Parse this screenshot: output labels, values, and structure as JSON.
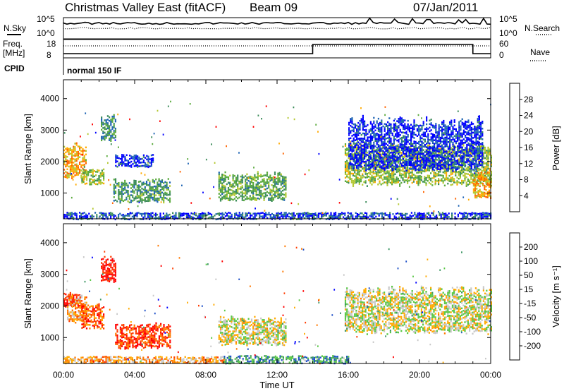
{
  "header": {
    "title": "Christmas Valley East (fitACF)",
    "beam": "Beam 09",
    "date": "07/Jan/2011"
  },
  "strip_labels": {
    "nsky": "N.Sky",
    "nsearch": "N.Search",
    "freq": "Freq.",
    "freq_unit": "[MHz]",
    "nave": "Nave",
    "cpid": "CPID",
    "cpid_value": "normal 150 IF"
  },
  "strip_ticks": {
    "noise_left_top": "10^5",
    "noise_left_bottom": "10^0",
    "noise_right_top": "10^5",
    "noise_right_bottom": "10^0",
    "freq_top": "18",
    "freq_bottom": "8",
    "nave_top": "60",
    "nave_bottom": "0"
  },
  "colors": {
    "power_scale": [
      "#0000ff",
      "#1e64b4",
      "#3c8c5a",
      "#5aaa3c",
      "#b4c832",
      "#ffaa00",
      "#ff6400",
      "#ff0000"
    ],
    "velocity_scale": [
      "#0000ff",
      "#1e50c8",
      "#3c9664",
      "#5ac846",
      "#c8c8c8",
      "#ffaa00",
      "#ff7800",
      "#ff3c00",
      "#ff0000"
    ]
  },
  "chart_data": [
    {
      "type": "heatmap",
      "name": "power",
      "ylabel": "Slant Range [km]",
      "yticks": [
        "4000",
        "3000",
        "2000",
        "1000"
      ],
      "ylim": [
        180,
        4600
      ],
      "xlim": [
        0,
        24
      ],
      "colorbar_label": "Power [dB]",
      "colorbar_ticks": [
        "28",
        "24",
        "20",
        "16",
        "12",
        "8",
        "4"
      ],
      "blobs": [
        {
          "t0": 0.0,
          "t1": 1.3,
          "r0": 1500,
          "r1": 2500,
          "level": 0.7
        },
        {
          "t0": 1.0,
          "t1": 2.3,
          "r0": 1300,
          "r1": 1750,
          "level": 0.5
        },
        {
          "t0": 2.1,
          "t1": 2.9,
          "r0": 2700,
          "r1": 3450,
          "level": 0.3
        },
        {
          "t0": 2.8,
          "t1": 6.0,
          "r0": 750,
          "r1": 1400,
          "level": 0.35
        },
        {
          "t0": 2.9,
          "t1": 5.0,
          "r0": 1850,
          "r1": 2200,
          "level": 0.1
        },
        {
          "t0": 8.7,
          "t1": 12.5,
          "r0": 800,
          "r1": 1600,
          "level": 0.4
        },
        {
          "t0": 15.8,
          "t1": 24.0,
          "r0": 1300,
          "r1": 2500,
          "level": 0.5
        },
        {
          "t0": 23.0,
          "t1": 24.0,
          "r0": 850,
          "r1": 1600,
          "level": 0.7
        },
        {
          "t0": 0.0,
          "t1": 24.0,
          "r0": 200,
          "r1": 380,
          "level": 0.15
        },
        {
          "t0": 16.0,
          "t1": 23.5,
          "r0": 1800,
          "r1": 3300,
          "level": 0.1
        }
      ]
    },
    {
      "type": "heatmap",
      "name": "velocity",
      "ylabel": "Slant Range [km]",
      "yticks": [
        "4000",
        "3000",
        "2000",
        "1000"
      ],
      "xlabel": "Time UT",
      "xticks": [
        "00:00",
        "04:00",
        "08:00",
        "12:00",
        "16:00",
        "20:00",
        "00:00"
      ],
      "ylim": [
        180,
        4600
      ],
      "xlim": [
        0,
        24
      ],
      "colorbar_label": "Velocity [m s⁻¹]",
      "colorbar_ticks": [
        "200",
        "100",
        "50",
        "15",
        "-15",
        "-50",
        "-100",
        "-200"
      ],
      "blobs": [
        {
          "t0": 0.0,
          "t1": 1.0,
          "r0": 2000,
          "r1": 2400,
          "v": 0.95
        },
        {
          "t0": 0.2,
          "t1": 1.3,
          "r0": 1500,
          "r1": 2300,
          "v": 0.65
        },
        {
          "t0": 1.0,
          "t1": 2.3,
          "r0": 1300,
          "r1": 2000,
          "v": 0.8
        },
        {
          "t0": 2.1,
          "t1": 2.9,
          "r0": 2800,
          "r1": 3500,
          "v": 0.95
        },
        {
          "t0": 2.9,
          "t1": 6.0,
          "r0": 700,
          "r1": 1400,
          "v": 0.85
        },
        {
          "t0": 8.7,
          "t1": 12.5,
          "r0": 800,
          "r1": 1600,
          "v": 0.5
        },
        {
          "t0": 15.8,
          "t1": 24.0,
          "r0": 1200,
          "r1": 2500,
          "v": 0.5
        },
        {
          "t0": 0.0,
          "t1": 9.0,
          "r0": 200,
          "r1": 400,
          "v": 0.65
        },
        {
          "t0": 9.0,
          "t1": 16.0,
          "r0": 200,
          "r1": 420,
          "v": 0.3
        }
      ]
    }
  ]
}
